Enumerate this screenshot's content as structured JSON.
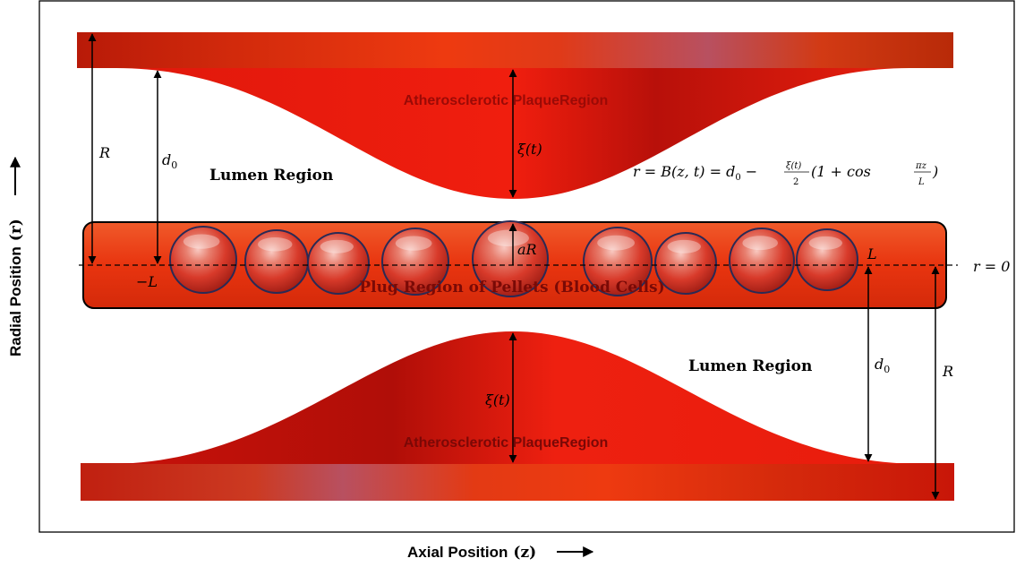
{
  "axis": {
    "x_label": "Axial Position",
    "x_var": "(z)",
    "y_label": "Radial Position",
    "y_var": "(r)"
  },
  "regions": {
    "plaque_top": "Atherosclerotic PlaqueRegion",
    "plaque_bottom": "Atherosclerotic PlaqueRegion",
    "lumen_top": "Lumen Region",
    "lumen_bottom": "Lumen Region",
    "plug": "Plug Region of Pellets (Blood Cells)"
  },
  "symbols": {
    "R_left": "R",
    "R_right": "R",
    "d0_left": "d",
    "d0_left_sub": "0",
    "d0_right": "d",
    "d0_right_sub": "0",
    "xi_top": "ξ(t)",
    "xi_bottom": "ξ(t)",
    "aR": "aR",
    "L_left": "−L",
    "L_right": "L",
    "r_zero": "r = 0"
  },
  "equation": {
    "lhs": "r = B(z, t) = d",
    "sub": "0",
    "minus": " − ",
    "frac_num": "ξ(t)",
    "frac_den": "2",
    "paren_open": "(1 + cos ",
    "frac2_num": "πz",
    "frac2_den": "L",
    "paren_close": ")"
  },
  "colors": {
    "wall_dark": "#b01a0a",
    "wall_orange": "#ee3a10",
    "wall_mauve": "#b85060",
    "plaque": "#e5120b",
    "plug": "#e8340f",
    "cell": "#d94030"
  }
}
